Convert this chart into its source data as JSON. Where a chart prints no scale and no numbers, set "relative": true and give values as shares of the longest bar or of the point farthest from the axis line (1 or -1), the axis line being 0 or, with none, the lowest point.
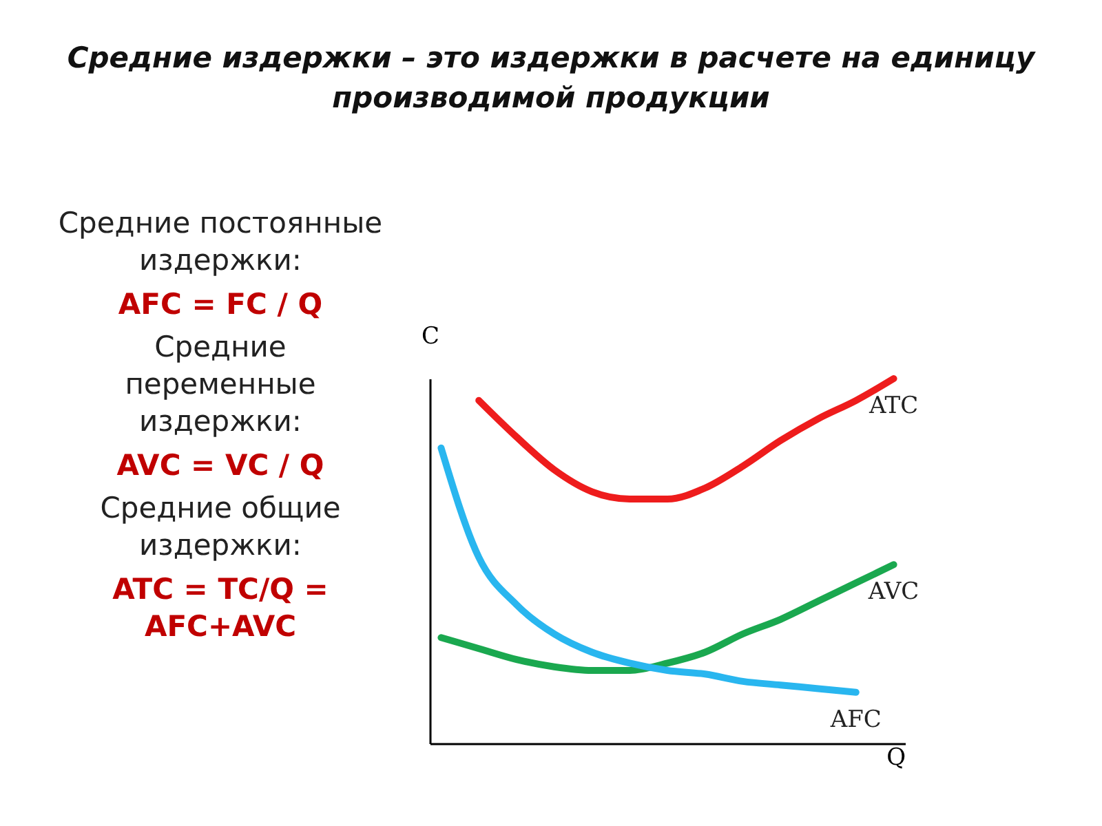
{
  "chart_data": {
    "type": "line",
    "title": "Средние издержки – это издержки в расчете на единицу производимой продукции",
    "xlabel": "Q",
    "ylabel": "C",
    "relative": true,
    "categories": [
      null,
      null,
      null,
      null,
      null,
      null,
      null,
      null,
      null,
      null,
      null,
      null,
      null
    ],
    "series": [
      {
        "name": "ATC",
        "color": "#ee1c1c",
        "values": [
          null,
          0.94,
          0.84,
          0.75,
          0.69,
          0.67,
          0.67,
          0.7,
          0.76,
          0.83,
          0.89,
          0.94,
          1
        ]
      },
      {
        "name": "AVC",
        "color": "#1aa84f",
        "values": [
          0.29,
          0.26,
          0.23,
          0.21,
          0.2,
          0.2,
          0.22,
          0.25,
          0.3,
          0.34,
          0.39,
          0.44,
          0.49
        ]
      },
      {
        "name": "AFC",
        "color": "#29b6ef",
        "values": [
          0.81,
          0.51,
          0.38,
          0.3,
          0.25,
          0.22,
          0.2,
          0.19,
          0.17,
          0.16,
          0.15,
          0.14,
          null
        ]
      }
    ],
    "annotations": [
      "Средние постоянные издержки:",
      "AFC = FC / Q",
      "Средние переменные издержки:",
      "AVC = VC / Q",
      "Средние общие издержки:",
      "ATC = TC/Q = AFC+AVC"
    ],
    "grid": false,
    "legend": false,
    "marker": "none",
    "line_style": "solid"
  }
}
